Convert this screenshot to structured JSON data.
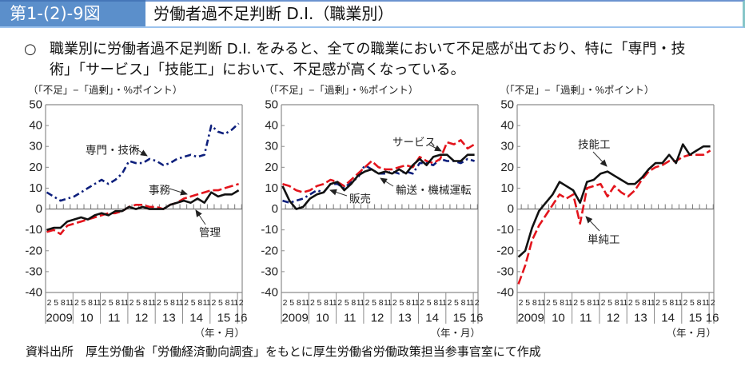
{
  "header": {
    "figure_number": "第1-(2)-9図",
    "title": "労働者過不足判断 D.I.（職業別）"
  },
  "summary": {
    "bullet": "○",
    "lines": [
      "職業別に労働者過不足判断 D.I. をみると、全ての職業において不足感が出ており、特に「専門・技",
      "術」「サービス」「技能工」において、不足感が高くなっている。"
    ]
  },
  "source_note": "資料出所　厚生労働省「労働経済動向調査」をもとに厚生労働省労働政策担当参事官室にて作成",
  "colors": {
    "header_bg": "#5b8fcb",
    "navy": "#0d1f7c",
    "red": "#e3141c",
    "black": "#111111"
  },
  "chart_data": [
    {
      "type": "line",
      "title": "",
      "ylabel": "（「不足」−「過剰」・%ポイント）",
      "xlabel": "（年・月）",
      "ylim": [
        -40,
        50
      ],
      "yticks": [
        50,
        40,
        30,
        20,
        10,
        0,
        -10,
        -20,
        -30,
        -40
      ],
      "grid": false,
      "x_tick_labels": {
        "months": [
          "2",
          "5",
          "8",
          "11"
        ],
        "years": [
          "2009",
          "10",
          "11",
          "12",
          "13",
          "14",
          "15",
          "16"
        ]
      },
      "series": [
        {
          "name": "専門・技術",
          "color": "#0d1f7c",
          "values": [
            8,
            6,
            4,
            5,
            6,
            8,
            10,
            12,
            14,
            12,
            14,
            17,
            23,
            22,
            22,
            24,
            23,
            21,
            22,
            24,
            25,
            26,
            25,
            26,
            40,
            37,
            36,
            38,
            41
          ]
        },
        {
          "name": "事務",
          "color": "#e3141c",
          "values": [
            -11,
            -10,
            -12,
            -8,
            -7,
            -6,
            -5,
            -4,
            -3,
            -2,
            -2,
            -1,
            1,
            2,
            2,
            1,
            1,
            0,
            2,
            3,
            5,
            6,
            7,
            8,
            9,
            9,
            10,
            11,
            12
          ]
        },
        {
          "name": "管理",
          "color": "#111111",
          "values": [
            -10,
            -9,
            -9,
            -6,
            -5,
            -4,
            -5,
            -3,
            -2,
            -3,
            -1,
            -1,
            1,
            0,
            1,
            0,
            0,
            0,
            2,
            3,
            4,
            3,
            5,
            3,
            8,
            6,
            7,
            7,
            9
          ]
        }
      ]
    },
    {
      "type": "line",
      "title": "",
      "ylabel": "（「不足」−「過剰」・%ポイント）",
      "xlabel": "（年・月）",
      "ylim": [
        -40,
        50
      ],
      "yticks": [
        50,
        40,
        30,
        20,
        10,
        0,
        -10,
        -20,
        -30,
        -40
      ],
      "grid": false,
      "x_tick_labels": {
        "months": [
          "2",
          "5",
          "8",
          "11"
        ],
        "years": [
          "2009",
          "10",
          "11",
          "12",
          "13",
          "14",
          "15",
          "16"
        ]
      },
      "series": [
        {
          "name": "サービス",
          "color": "#e3141c",
          "values": [
            12,
            11,
            9,
            8,
            9,
            11,
            12,
            14,
            13,
            11,
            14,
            17,
            20,
            23,
            20,
            19,
            19,
            20,
            21,
            20,
            25,
            23,
            22,
            24,
            32,
            31,
            33,
            29,
            31
          ]
        },
        {
          "name": "販売",
          "color": "#111111",
          "values": [
            11,
            4,
            0,
            1,
            5,
            7,
            8,
            12,
            13,
            9,
            12,
            16,
            18,
            19,
            17,
            18,
            17,
            19,
            17,
            21,
            24,
            21,
            25,
            26,
            26,
            23,
            23,
            26,
            26
          ]
        },
        {
          "name": "輸送・機械運転",
          "color": "#0d1f7c",
          "values": [
            4,
            3,
            4,
            5,
            7,
            9,
            8,
            12,
            12,
            10,
            13,
            15,
            21,
            19,
            17,
            17,
            18,
            17,
            18,
            17,
            22,
            22,
            21,
            24,
            23,
            23,
            22,
            24,
            23
          ]
        }
      ]
    },
    {
      "type": "line",
      "title": "",
      "ylabel": "（「不足」−「過剰」・%ポイント）",
      "xlabel": "（年・月）",
      "ylim": [
        -40,
        50
      ],
      "yticks": [
        50,
        40,
        30,
        20,
        10,
        0,
        -10,
        -20,
        -30,
        -40
      ],
      "grid": false,
      "x_tick_labels": {
        "months": [
          "2",
          "5",
          "8",
          "11"
        ],
        "years": [
          "2009",
          "10",
          "11",
          "12",
          "13",
          "14",
          "15",
          "16"
        ]
      },
      "series": [
        {
          "name": "技能工",
          "color": "#111111",
          "values": [
            -23,
            -20,
            -9,
            -1,
            3,
            7,
            13,
            11,
            9,
            3,
            13,
            14,
            17,
            18,
            16,
            14,
            12,
            12,
            15,
            19,
            22,
            22,
            26,
            22,
            31,
            26,
            28,
            30,
            30
          ]
        },
        {
          "name": "単純工",
          "color": "#e3141c",
          "values": [
            -36,
            -27,
            -15,
            -8,
            -3,
            2,
            7,
            5,
            7,
            -7,
            10,
            11,
            12,
            6,
            11,
            8,
            6,
            9,
            14,
            18,
            20,
            21,
            23,
            23,
            25,
            26,
            26,
            26,
            28
          ]
        }
      ]
    }
  ]
}
